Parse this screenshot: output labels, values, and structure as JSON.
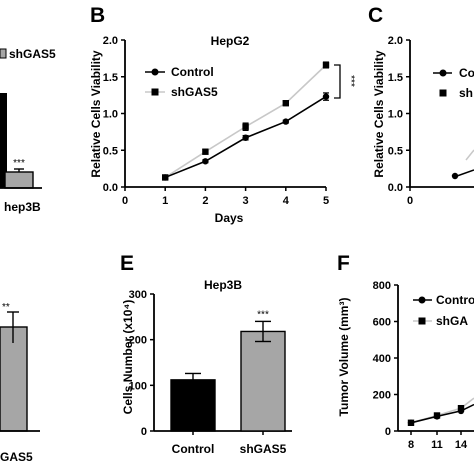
{
  "panels": {
    "B": "B",
    "C": "C",
    "E": "E",
    "F": "F"
  },
  "colors": {
    "control": "#000000",
    "shgas5_line": "#c8c8c8",
    "shgas5_bar": "#a6a6a6",
    "axis": "#000000"
  },
  "chart_data": [
    {
      "id": "A",
      "type": "bar",
      "categories": [
        "Hep3B"
      ],
      "series": [
        {
          "name": "Control",
          "values": [
            1.0
          ]
        },
        {
          "name": "shGAS5",
          "values": [
            0.2
          ]
        }
      ],
      "legend": [
        "shGAS5"
      ],
      "tick_labels": [
        "hep3B"
      ],
      "annotations": [
        "***"
      ]
    },
    {
      "id": "B",
      "type": "line",
      "title": "HepG2",
      "xlabel": "Days",
      "ylabel": "Relative Cells Viability",
      "x": [
        1,
        2,
        3,
        4,
        5
      ],
      "xlim": [
        0,
        5
      ],
      "ylim": [
        0,
        2.0
      ],
      "xticks": [
        "0",
        "1",
        "2",
        "3",
        "4",
        "5"
      ],
      "yticks": [
        "0.0",
        "0.5",
        "1.0",
        "1.5",
        "2.0"
      ],
      "series": [
        {
          "name": "Control",
          "values": [
            0.13,
            0.35,
            0.67,
            0.89,
            1.23
          ],
          "errors": [
            0.02,
            0.02,
            0.03,
            0.02,
            0.05
          ]
        },
        {
          "name": "shGAS5",
          "values": [
            0.13,
            0.48,
            0.82,
            1.14,
            1.66
          ],
          "errors": [
            0.02,
            0.03,
            0.05,
            0.03,
            0.04
          ]
        }
      ],
      "legend_position": "top-left",
      "annotations": [
        "***"
      ]
    },
    {
      "id": "C",
      "type": "line",
      "ylabel": "Relative Cells Viability",
      "ylim": [
        0,
        2.0
      ],
      "yticks": [
        "0.0",
        "0.5",
        "1.0",
        "1.5",
        "2.0"
      ],
      "xticks": [
        "0"
      ],
      "series": [
        {
          "name": "Co",
          "values": [
            0.13
          ]
        },
        {
          "name": "sh",
          "values": []
        }
      ]
    },
    {
      "id": "D",
      "type": "bar",
      "tick_labels": [
        "GAS5"
      ],
      "series": [
        {
          "name": "shGAS5",
          "values": [
            235
          ],
          "errors": [
            35
          ]
        }
      ],
      "annotations": [
        "**"
      ]
    },
    {
      "id": "E",
      "type": "bar",
      "title": "Hep3B",
      "ylabel": "Cells Number (x10⁴)",
      "ylim": [
        0,
        300
      ],
      "yticks": [
        "0",
        "100",
        "200",
        "300"
      ],
      "categories": [
        "Control",
        "shGAS5"
      ],
      "values": [
        112,
        218
      ],
      "errors": [
        14,
        22
      ],
      "annotations": [
        "***"
      ]
    },
    {
      "id": "F",
      "type": "line",
      "ylabel": "Tumor Volume (mm³)",
      "ylim": [
        0,
        800
      ],
      "yticks": [
        "0",
        "200",
        "400",
        "600",
        "800"
      ],
      "xticks": [
        "8",
        "11",
        "14"
      ],
      "x": [
        8,
        11,
        14
      ],
      "series": [
        {
          "name": "Contro",
          "values": [
            45,
            80,
            110
          ]
        },
        {
          "name": "shGA",
          "values": [
            45,
            85,
            125
          ]
        }
      ],
      "legend_position": "top-left"
    }
  ]
}
